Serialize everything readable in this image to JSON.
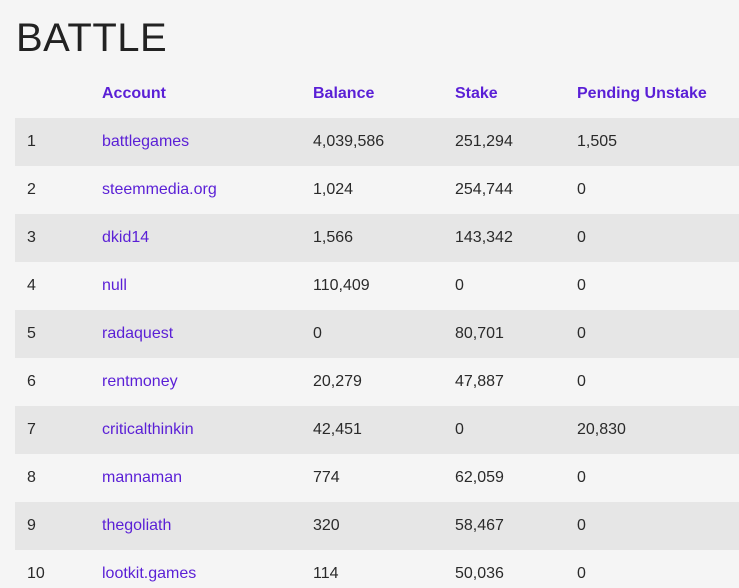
{
  "page": {
    "title": "BATTLE"
  },
  "table": {
    "headers": {
      "rank": "",
      "account": "Account",
      "balance": "Balance",
      "stake": "Stake",
      "pending_unstake": "Pending Unstake"
    },
    "rows": [
      {
        "rank": "1",
        "account": "battlegames",
        "balance": "4,039,586",
        "stake": "251,294",
        "pending_unstake": "1,505"
      },
      {
        "rank": "2",
        "account": "steemmedia.org",
        "balance": "1,024",
        "stake": "254,744",
        "pending_unstake": "0"
      },
      {
        "rank": "3",
        "account": "dkid14",
        "balance": "1,566",
        "stake": "143,342",
        "pending_unstake": "0"
      },
      {
        "rank": "4",
        "account": "null",
        "balance": "110,409",
        "stake": "0",
        "pending_unstake": "0"
      },
      {
        "rank": "5",
        "account": "radaquest",
        "balance": "0",
        "stake": "80,701",
        "pending_unstake": "0"
      },
      {
        "rank": "6",
        "account": "rentmoney",
        "balance": "20,279",
        "stake": "47,887",
        "pending_unstake": "0"
      },
      {
        "rank": "7",
        "account": "criticalthinkin",
        "balance": "42,451",
        "stake": "0",
        "pending_unstake": "20,830"
      },
      {
        "rank": "8",
        "account": "mannaman",
        "balance": "774",
        "stake": "62,059",
        "pending_unstake": "0"
      },
      {
        "rank": "9",
        "account": "thegoliath",
        "balance": "320",
        "stake": "58,467",
        "pending_unstake": "0"
      },
      {
        "rank": "10",
        "account": "lootkit.games",
        "balance": "114",
        "stake": "50,036",
        "pending_unstake": "0"
      }
    ]
  },
  "colors": {
    "link": "#5a1fd6",
    "row_stripe": "#e6e6e6",
    "background": "#f5f5f5",
    "text": "#2a2a2a"
  }
}
